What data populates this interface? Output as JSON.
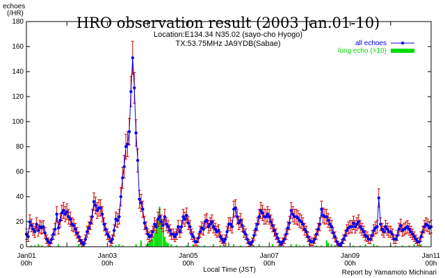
{
  "chart_data": {
    "type": "line",
    "title": "HRO observation result (2003 Jan.01-10)",
    "subtitle_lines": [
      "Location:E134.34 N35.02 (sayo-cho Hyogo)",
      "TX:53.75MHz JA9YDB(Sabae)"
    ],
    "ylabel_lines": [
      "echoes",
      "(/HR)"
    ],
    "xlabel": "Local Time (JST)",
    "credit": "Report by Yamamoto Michinari",
    "x_unit": "day",
    "xlim": [
      1,
      11
    ],
    "ylim": [
      0,
      180
    ],
    "y_ticks": [
      0,
      20,
      40,
      60,
      80,
      100,
      120,
      140,
      160,
      180
    ],
    "x_ticks": [
      {
        "x": 1,
        "date": "Jan01",
        "hour": "00h"
      },
      {
        "x": 3,
        "date": "Jan03",
        "hour": "00h"
      },
      {
        "x": 5,
        "date": "Jan05",
        "hour": "00h"
      },
      {
        "x": 7,
        "date": "Jan07",
        "hour": "00h"
      },
      {
        "x": 9,
        "date": "Jan09",
        "hour": "00h"
      },
      {
        "x": 11,
        "date": "Jan11",
        "hour": "00h"
      }
    ],
    "legend_placement": "top-right",
    "colors": {
      "all": "#0000ee",
      "long": "#00dd00",
      "error": "#cc0000"
    },
    "series": [
      {
        "name": "all echoes",
        "style": "line-points-errorbars",
        "x": [
          1.0,
          1.042,
          1.083,
          1.125,
          1.167,
          1.208,
          1.25,
          1.292,
          1.333,
          1.375,
          1.417,
          1.458,
          1.5,
          1.542,
          1.583,
          1.625,
          1.667,
          1.708,
          1.75,
          1.792,
          1.833,
          1.875,
          1.917,
          1.958,
          2.0,
          2.042,
          2.083,
          2.125,
          2.167,
          2.208,
          2.25,
          2.292,
          2.333,
          2.375,
          2.417,
          2.458,
          2.5,
          2.542,
          2.583,
          2.625,
          2.667,
          2.708,
          2.75,
          2.792,
          2.833,
          2.875,
          2.917,
          2.958,
          3.0,
          3.042,
          3.083,
          3.125,
          3.167,
          3.208,
          3.25,
          3.292,
          3.333,
          3.375,
          3.417,
          3.458,
          3.5,
          3.542,
          3.583,
          3.625,
          3.667,
          3.708,
          3.75,
          3.792,
          3.833,
          3.875,
          3.917,
          3.958,
          4.0,
          4.042,
          4.083,
          4.125,
          4.167,
          4.208,
          4.25,
          4.292,
          4.333,
          4.375,
          4.417,
          4.458,
          4.5,
          4.542,
          4.583,
          4.625,
          4.667,
          4.708,
          4.75,
          4.792,
          4.833,
          4.875,
          4.917,
          4.958,
          5.0,
          5.042,
          5.083,
          5.125,
          5.167,
          5.208,
          5.25,
          5.292,
          5.333,
          5.375,
          5.417,
          5.458,
          5.5,
          5.542,
          5.583,
          5.625,
          5.667,
          5.708,
          5.75,
          5.792,
          5.833,
          5.875,
          5.917,
          5.958,
          6.0,
          6.042,
          6.083,
          6.125,
          6.167,
          6.208,
          6.25,
          6.292,
          6.333,
          6.375,
          6.417,
          6.458,
          6.5,
          6.542,
          6.583,
          6.625,
          6.667,
          6.708,
          6.75,
          6.792,
          6.833,
          6.875,
          6.917,
          6.958,
          7.0,
          7.042,
          7.083,
          7.125,
          7.167,
          7.208,
          7.25,
          7.292,
          7.333,
          7.375,
          7.417,
          7.458,
          7.5,
          7.542,
          7.583,
          7.625,
          7.667,
          7.708,
          7.75,
          7.792,
          7.833,
          7.875,
          7.917,
          7.958,
          8.0,
          8.042,
          8.083,
          8.125,
          8.167,
          8.208,
          8.25,
          8.292,
          8.333,
          8.375,
          8.417,
          8.458,
          8.5,
          8.542,
          8.583,
          8.625,
          8.667,
          8.708,
          8.75,
          8.792,
          8.833,
          8.875,
          8.917,
          8.958,
          9.0,
          9.042,
          9.083,
          9.125,
          9.167,
          9.208,
          9.25,
          9.292,
          9.333,
          9.375,
          9.417,
          9.458,
          9.5,
          9.542,
          9.583,
          9.625,
          9.667,
          9.708,
          9.75,
          9.792,
          9.833,
          9.875,
          9.917,
          9.958,
          10.0,
          10.042,
          10.083,
          10.125,
          10.167,
          10.208,
          10.25,
          10.292,
          10.333,
          10.375,
          10.417,
          10.458,
          10.5,
          10.542,
          10.583,
          10.625,
          10.667,
          10.708,
          10.75,
          10.792,
          10.833,
          10.875,
          10.917,
          10.958,
          11.0
        ],
        "y": [
          10,
          8,
          20,
          17,
          14,
          12,
          18,
          13,
          16,
          15,
          16,
          11,
          6,
          4,
          3,
          6,
          10,
          14,
          26,
          15,
          21,
          27,
          29,
          26,
          28,
          24,
          22,
          18,
          17,
          14,
          11,
          8,
          5,
          3,
          2,
          6,
          12,
          15,
          19,
          24,
          36,
          33,
          29,
          31,
          31,
          26,
          18,
          14,
          10,
          8,
          4,
          6,
          13,
          22,
          21,
          24,
          40,
          55,
          64,
          80,
          82,
          92,
          124,
          151,
          127,
          91,
          69,
          38,
          35,
          30,
          19,
          15,
          10,
          8,
          9,
          12,
          18,
          16,
          22,
          24,
          20,
          17,
          24,
          18,
          16,
          13,
          10,
          10,
          8,
          10,
          16,
          12,
          16,
          24,
          22,
          25,
          19,
          16,
          10,
          8,
          4,
          4,
          7,
          12,
          15,
          14,
          20,
          21,
          16,
          18,
          20,
          16,
          14,
          12,
          13,
          8,
          6,
          4,
          6,
          12,
          18,
          18,
          16,
          30,
          31,
          24,
          19,
          21,
          17,
          12,
          10,
          6,
          3,
          2,
          4,
          9,
          14,
          18,
          24,
          29,
          27,
          24,
          24,
          26,
          24,
          20,
          17,
          13,
          10,
          7,
          4,
          2,
          4,
          6,
          10,
          15,
          19,
          29,
          26,
          24,
          24,
          23,
          21,
          20,
          18,
          14,
          12,
          8,
          5,
          4,
          4,
          6,
          10,
          14,
          18,
          30,
          25,
          24,
          24,
          21,
          18,
          16,
          11,
          8,
          4,
          2,
          1,
          3,
          6,
          9,
          13,
          15,
          16,
          16,
          19,
          16,
          18,
          20,
          16,
          14,
          12,
          9,
          8,
          6,
          6,
          9,
          13,
          15,
          16,
          39,
          18,
          14,
          12,
          16,
          14,
          12,
          12,
          10,
          6,
          6,
          9,
          14,
          17,
          13,
          14,
          15,
          16,
          14,
          12,
          10,
          8,
          6,
          4,
          4,
          8,
          12,
          16,
          18,
          17,
          15,
          16
        ]
      },
      {
        "name": "long echo (>10)",
        "style": "bars",
        "x": [
          1.12,
          1.21,
          1.3,
          1.38,
          1.79,
          2.29,
          2.38,
          2.42,
          3.12,
          3.21,
          3.29,
          3.38,
          3.71,
          3.83,
          3.96,
          4.0,
          4.04,
          4.08,
          4.12,
          4.17,
          4.21,
          4.25,
          4.29,
          4.33,
          4.38,
          4.42,
          4.46,
          4.5,
          4.58,
          4.71,
          4.96,
          5.12,
          5.25,
          5.4,
          5.62,
          5.79,
          5.92,
          6.12,
          6.29,
          6.62,
          6.75,
          7.08,
          7.25,
          7.54,
          7.67,
          7.75,
          7.85,
          8.17,
          8.29,
          8.42,
          8.46,
          8.54,
          8.62,
          8.79,
          9.08,
          9.25,
          9.38,
          9.58,
          9.67,
          10.0,
          10.12,
          10.29,
          10.46,
          10.58,
          10.75
        ],
        "y": [
          1,
          1,
          2,
          1,
          2,
          2,
          1,
          1,
          1,
          1,
          2,
          1,
          2,
          5,
          2,
          2,
          4,
          5,
          7,
          11,
          18,
          23,
          32,
          22,
          15,
          8,
          4,
          3,
          2,
          1,
          1,
          2,
          1,
          1,
          2,
          1,
          2,
          2,
          1,
          1,
          2,
          2,
          1,
          2,
          2,
          1,
          1,
          1,
          1,
          5,
          3,
          2,
          1,
          1,
          1,
          1,
          2,
          2,
          1,
          1,
          1,
          1,
          1,
          2,
          2
        ]
      }
    ]
  }
}
